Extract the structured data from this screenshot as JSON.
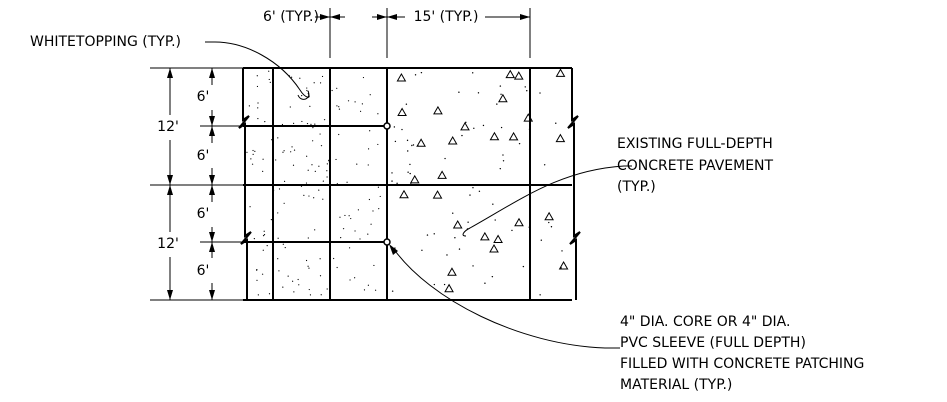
{
  "dimensions": {
    "top": [
      "6' (TYP.)",
      "15' (TYP.)"
    ],
    "left_outer": [
      "12'",
      "12'"
    ],
    "left_inner": [
      "6'",
      "6'",
      "6'",
      "6'"
    ]
  },
  "callouts": {
    "whitetopping": "WHITETOPPING (TYP.)",
    "existing": [
      "EXISTING FULL-DEPTH",
      "CONCRETE PAVEMENT",
      "(TYP.)"
    ],
    "core": [
      "4\" DIA. CORE OR 4\" DIA.",
      "PVC SLEEVE (FULL DEPTH)",
      "FILLED WITH CONCRETE PATCHING",
      "MATERIAL (TYP.)"
    ]
  }
}
